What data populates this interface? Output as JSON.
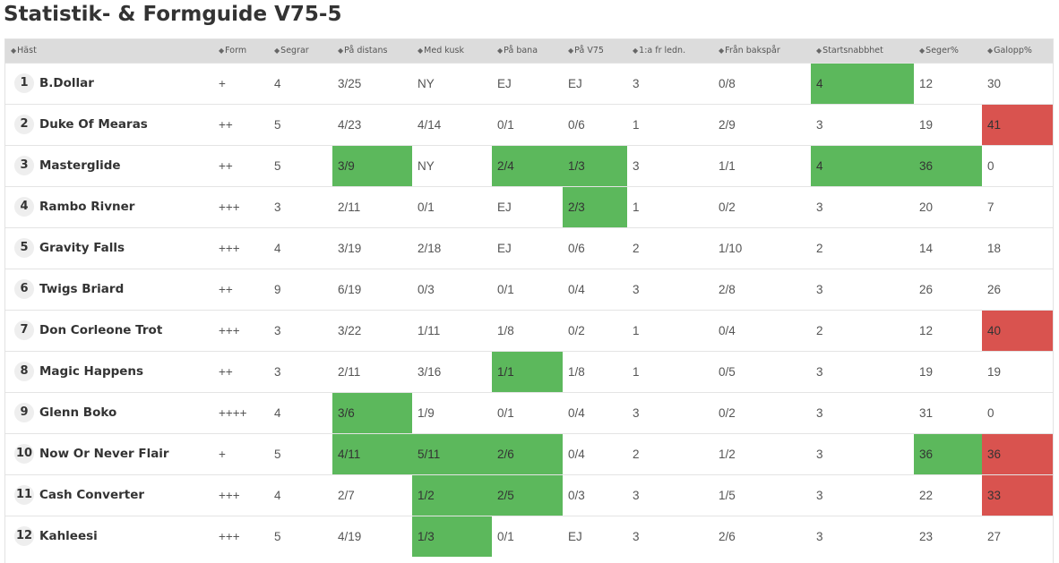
{
  "title": "Statistik- & Formguide V75-5",
  "colors": {
    "good": "#5cb85c",
    "bad": "#d9534f",
    "header_bg": "#dcdcdc"
  },
  "columns": [
    "Häst",
    "Form",
    "Segrar",
    "På distans",
    "Med kusk",
    "På bana",
    "På V75",
    "1:a fr ledn.",
    "Från bakspår",
    "Startsnabbhet",
    "Seger%",
    "Galopp%"
  ],
  "rows": [
    {
      "nr": "1",
      "name": "B.Dollar",
      "form": "+",
      "segrar": "4",
      "distans": "3/25",
      "kusk": "NY",
      "bana": "EJ",
      "v75": "EJ",
      "ledn": "3",
      "baksp": "0/8",
      "start": "4",
      "seger": "12",
      "galopp": "30",
      "hl": {
        "start": "g"
      }
    },
    {
      "nr": "2",
      "name": "Duke Of Mearas",
      "form": "++",
      "segrar": "5",
      "distans": "4/23",
      "kusk": "4/14",
      "bana": "0/1",
      "v75": "0/6",
      "ledn": "1",
      "baksp": "2/9",
      "start": "3",
      "seger": "19",
      "galopp": "41",
      "hl": {
        "galopp": "r"
      }
    },
    {
      "nr": "3",
      "name": "Masterglide",
      "form": "++",
      "segrar": "5",
      "distans": "3/9",
      "kusk": "NY",
      "bana": "2/4",
      "v75": "1/3",
      "ledn": "3",
      "baksp": "1/1",
      "start": "4",
      "seger": "36",
      "galopp": "0",
      "hl": {
        "distans": "g",
        "bana": "g",
        "v75": "g",
        "start": "g",
        "seger": "g"
      }
    },
    {
      "nr": "4",
      "name": "Rambo Rivner",
      "form": "+++",
      "segrar": "3",
      "distans": "2/11",
      "kusk": "0/1",
      "bana": "EJ",
      "v75": "2/3",
      "ledn": "1",
      "baksp": "0/2",
      "start": "3",
      "seger": "20",
      "galopp": "7",
      "hl": {
        "v75": "g"
      }
    },
    {
      "nr": "5",
      "name": "Gravity Falls",
      "form": "+++",
      "segrar": "4",
      "distans": "3/19",
      "kusk": "2/18",
      "bana": "EJ",
      "v75": "0/6",
      "ledn": "2",
      "baksp": "1/10",
      "start": "2",
      "seger": "14",
      "galopp": "18",
      "hl": {}
    },
    {
      "nr": "6",
      "name": "Twigs Briard",
      "form": "++",
      "segrar": "9",
      "distans": "6/19",
      "kusk": "0/3",
      "bana": "0/1",
      "v75": "0/4",
      "ledn": "3",
      "baksp": "2/8",
      "start": "3",
      "seger": "26",
      "galopp": "26",
      "hl": {}
    },
    {
      "nr": "7",
      "name": "Don Corleone Trot",
      "form": "+++",
      "segrar": "3",
      "distans": "3/22",
      "kusk": "1/11",
      "bana": "1/8",
      "v75": "0/2",
      "ledn": "1",
      "baksp": "0/4",
      "start": "2",
      "seger": "12",
      "galopp": "40",
      "hl": {
        "galopp": "r"
      }
    },
    {
      "nr": "8",
      "name": "Magic Happens",
      "form": "++",
      "segrar": "3",
      "distans": "2/11",
      "kusk": "3/16",
      "bana": "1/1",
      "v75": "1/8",
      "ledn": "1",
      "baksp": "0/5",
      "start": "3",
      "seger": "19",
      "galopp": "19",
      "hl": {
        "bana": "g"
      }
    },
    {
      "nr": "9",
      "name": "Glenn Boko",
      "form": "++++",
      "segrar": "4",
      "distans": "3/6",
      "kusk": "1/9",
      "bana": "0/1",
      "v75": "0/4",
      "ledn": "3",
      "baksp": "0/2",
      "start": "3",
      "seger": "31",
      "galopp": "0",
      "hl": {
        "distans": "g"
      }
    },
    {
      "nr": "10",
      "name": "Now Or Never Flair",
      "form": "+",
      "segrar": "5",
      "distans": "4/11",
      "kusk": "5/11",
      "bana": "2/6",
      "v75": "0/4",
      "ledn": "2",
      "baksp": "1/2",
      "start": "3",
      "seger": "36",
      "galopp": "36",
      "hl": {
        "distans": "g",
        "kusk": "g",
        "bana": "g",
        "seger": "g",
        "galopp": "r"
      }
    },
    {
      "nr": "11",
      "name": "Cash Converter",
      "form": "+++",
      "segrar": "4",
      "distans": "2/7",
      "kusk": "1/2",
      "bana": "2/5",
      "v75": "0/3",
      "ledn": "3",
      "baksp": "1/5",
      "start": "3",
      "seger": "22",
      "galopp": "33",
      "hl": {
        "kusk": "g",
        "bana": "g",
        "galopp": "r"
      }
    },
    {
      "nr": "12",
      "name": "Kahleesi",
      "form": "+++",
      "segrar": "5",
      "distans": "4/19",
      "kusk": "1/3",
      "bana": "0/1",
      "v75": "EJ",
      "ledn": "3",
      "baksp": "2/6",
      "start": "3",
      "seger": "23",
      "galopp": "27",
      "hl": {
        "kusk": "g"
      }
    }
  ]
}
